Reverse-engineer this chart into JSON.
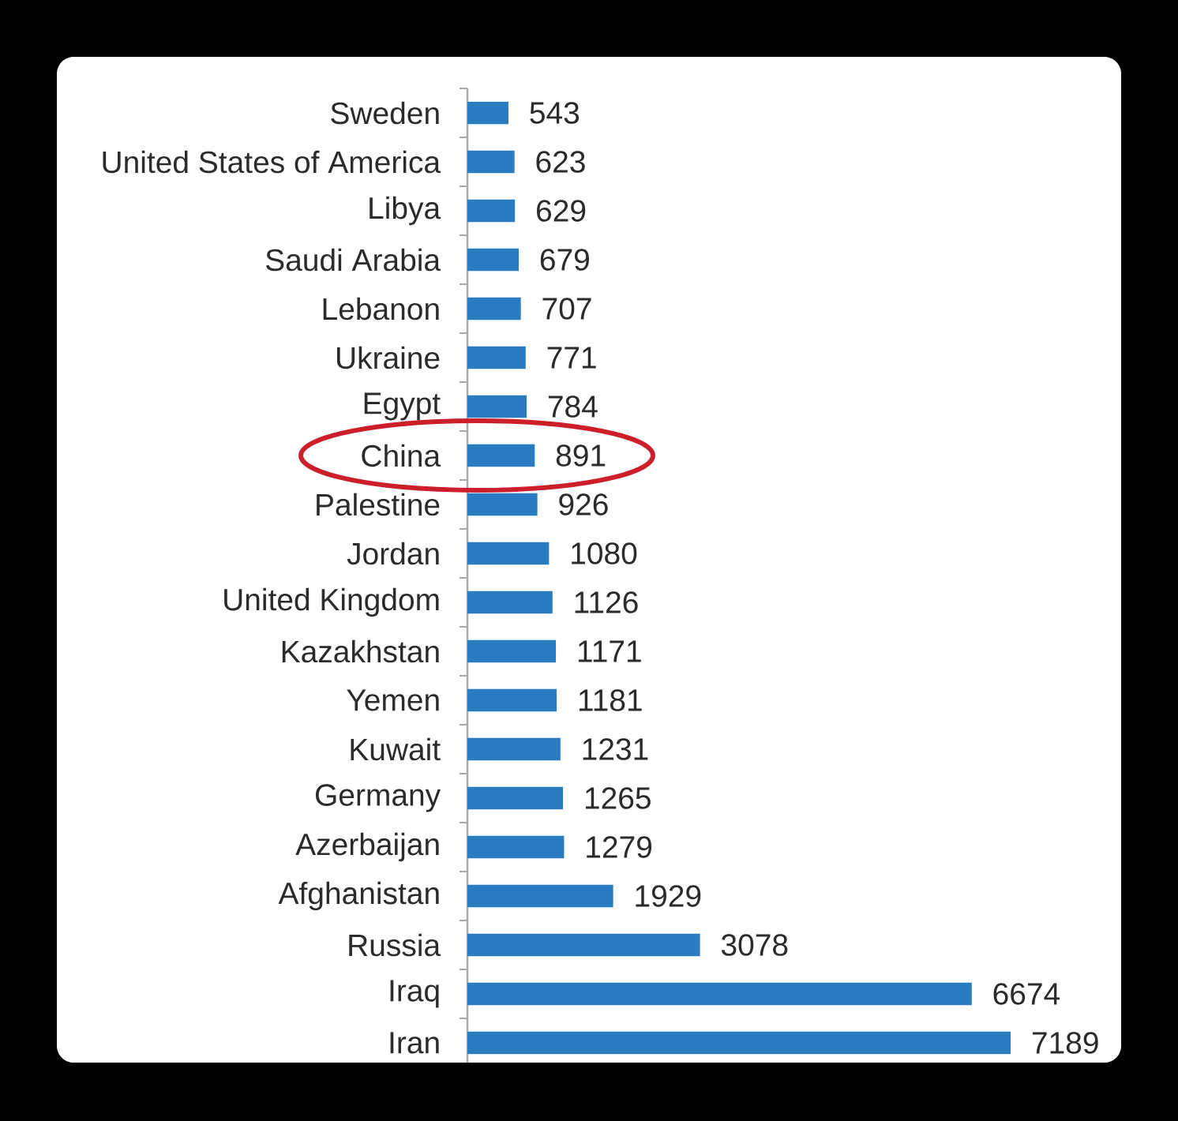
{
  "chart_data": {
    "type": "bar",
    "orientation": "horizontal",
    "categories": [
      "Sweden",
      "United States of America",
      "Libya",
      "Saudi Arabia",
      "Lebanon",
      "Ukraine",
      "Egypt",
      "China",
      "Palestine",
      "Jordan",
      "United Kingdom",
      "Kazakhstan",
      "Yemen",
      "Kuwait",
      "Germany",
      "Azerbaijan",
      "Afghanistan",
      "Russia",
      "Iraq",
      "Iran"
    ],
    "values": [
      543,
      623,
      629,
      679,
      707,
      771,
      784,
      891,
      926,
      1080,
      1126,
      1171,
      1181,
      1231,
      1265,
      1279,
      1929,
      3078,
      6674,
      7189
    ],
    "color": "#2a7cc1",
    "data_labels": true,
    "tick_labels": "y"
  }
}
